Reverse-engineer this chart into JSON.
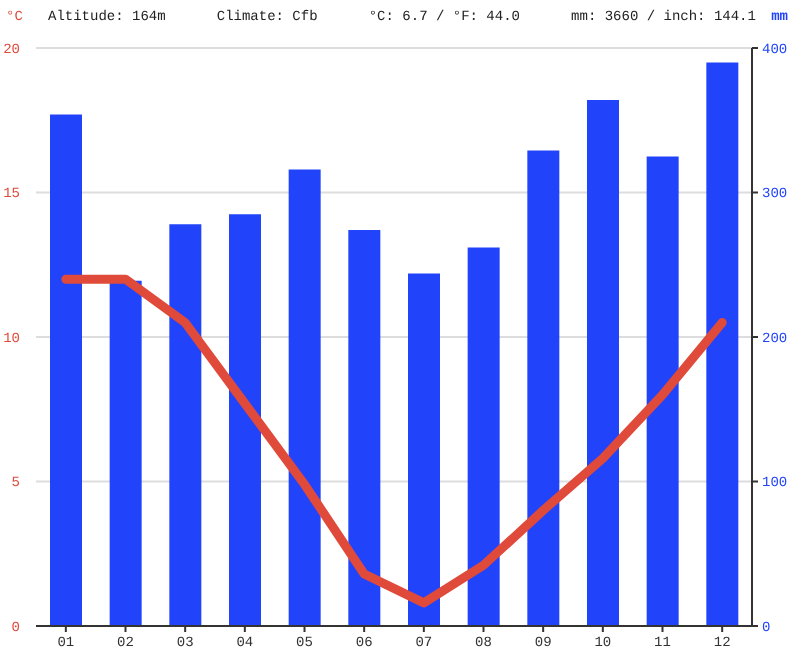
{
  "chart_data": {
    "type": "bar",
    "ylabel": "°C",
    "y2label": "mm",
    "annotations": [
      "Altitude: 164m",
      "Climate: Cfb",
      "°C: 6.7 / °F: 44.0",
      "mm: 3660 / inch: 144.1"
    ],
    "categories": [
      "01",
      "02",
      "03",
      "04",
      "05",
      "06",
      "07",
      "08",
      "09",
      "10",
      "11",
      "12"
    ],
    "series": [
      {
        "axis": "y2",
        "color": "#2144fb",
        "values": [
          354,
          239,
          278,
          285,
          316,
          274,
          244,
          262,
          329,
          364,
          325,
          390
        ]
      },
      {
        "type": "line",
        "axis": "y",
        "color": "#e04a3a",
        "line_style": "solid",
        "values": [
          12.0,
          12.0,
          10.5,
          7.7,
          4.9,
          1.8,
          0.8,
          2.1,
          4.0,
          5.8,
          8.0,
          10.5
        ]
      }
    ],
    "ylim": [
      0,
      20
    ],
    "yticks": [
      0,
      5,
      10,
      15,
      20
    ],
    "y2lim": [
      0,
      400
    ],
    "y2ticks": [
      0,
      100,
      200,
      300,
      400
    ],
    "grid": "y",
    "legend": false
  }
}
